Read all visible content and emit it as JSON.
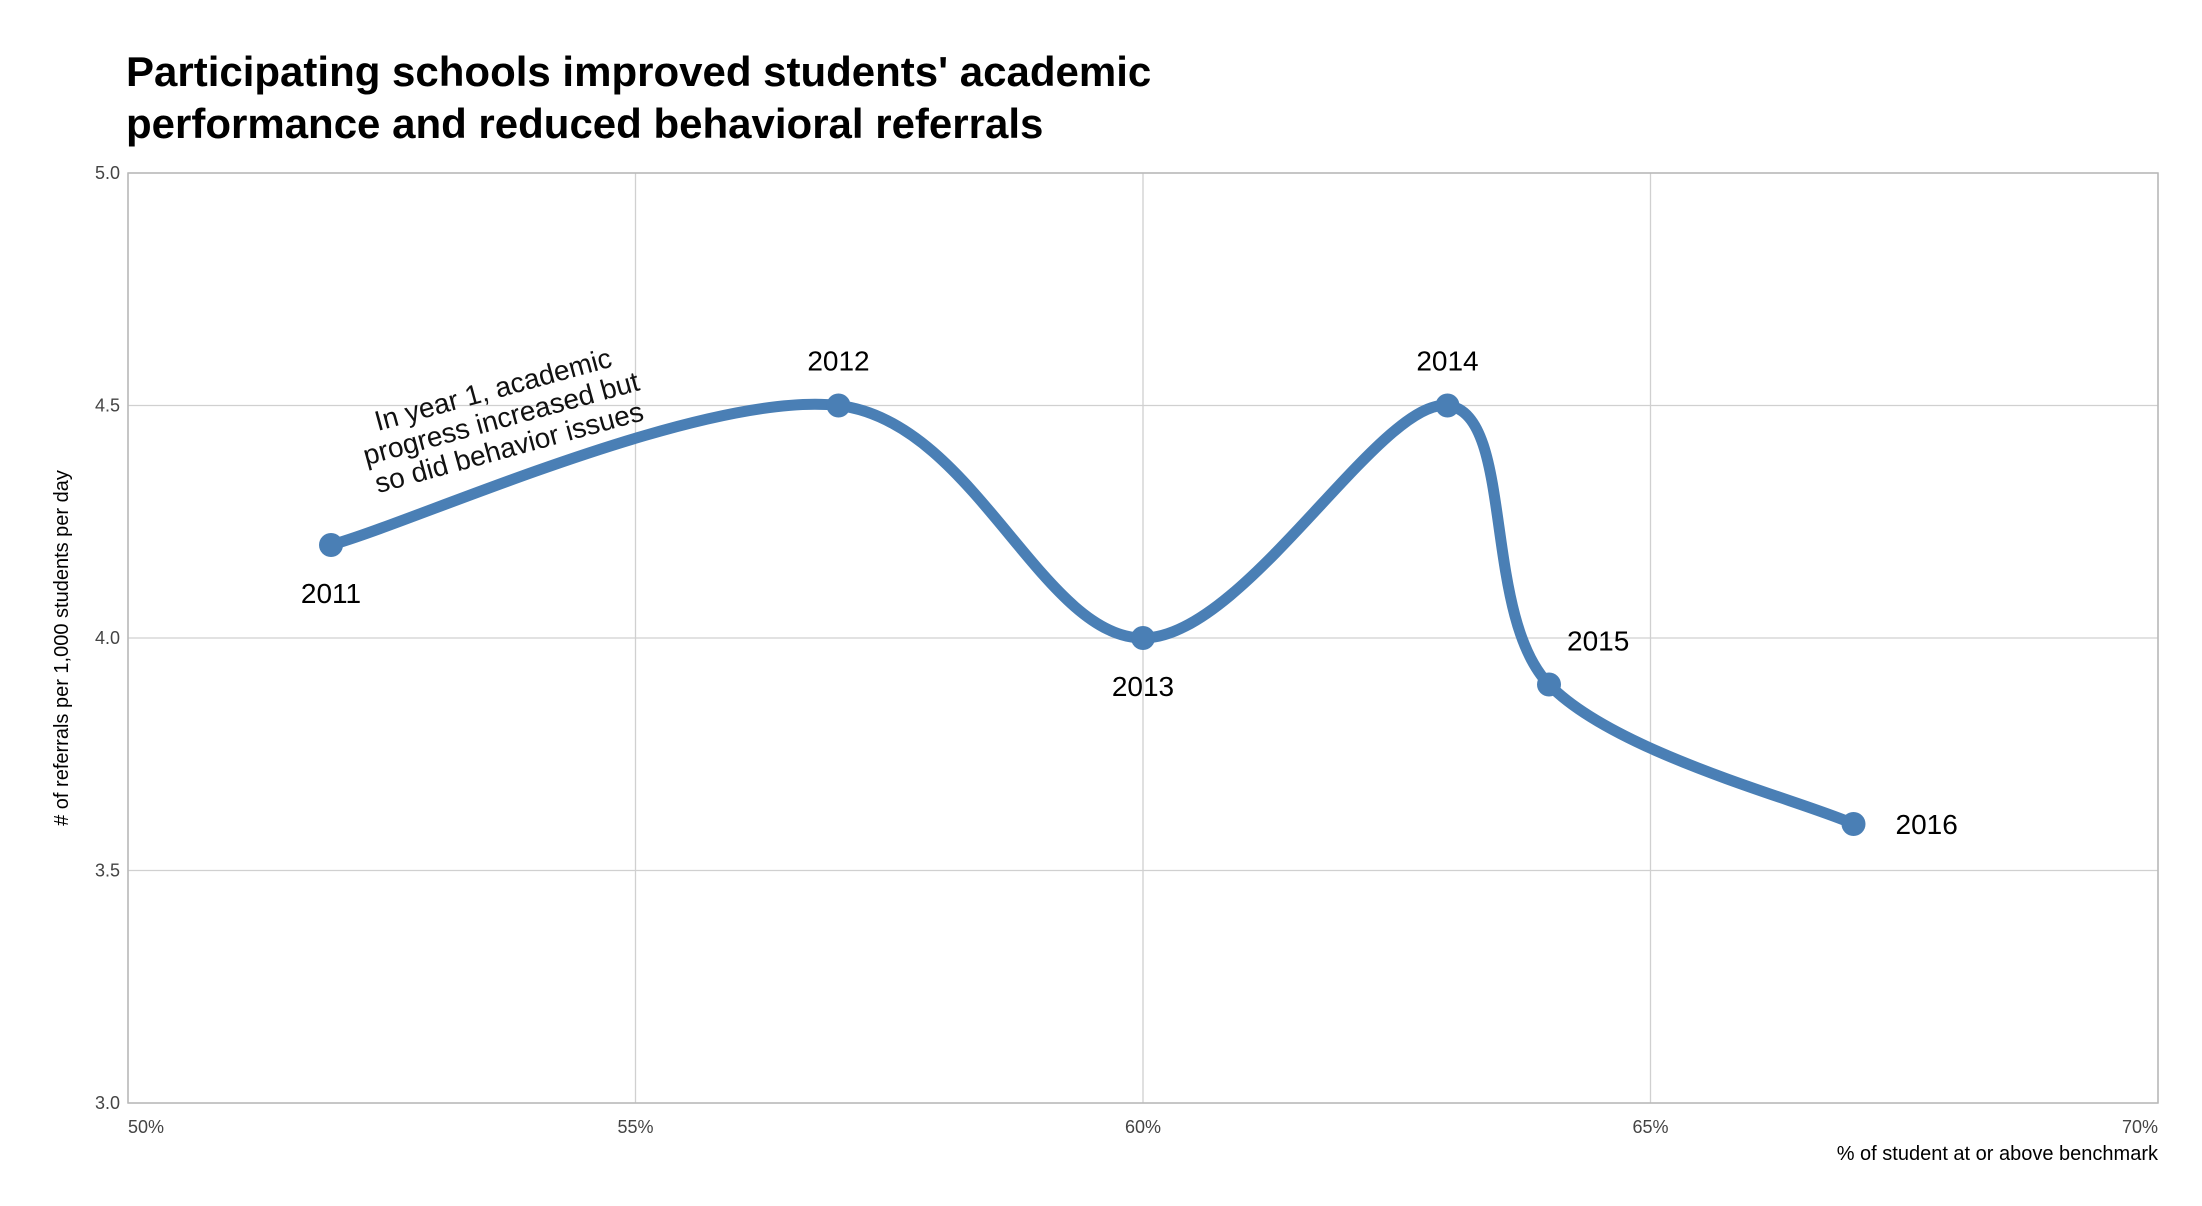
{
  "chart_data": {
    "type": "line",
    "title_lines": [
      "Participating schools improved students' academic",
      "performance and reduced behavioral referrals"
    ],
    "xlabel": "% of student at or above benchmark",
    "ylabel": "# of referrals per 1,000 students per day",
    "xlim": [
      50,
      70
    ],
    "ylim": [
      3.0,
      5.0
    ],
    "x_ticks": [
      50,
      55,
      60,
      65,
      70
    ],
    "x_tick_labels": [
      "50%",
      "55%",
      "60%",
      "65%",
      "70%"
    ],
    "y_ticks": [
      3.0,
      3.5,
      4.0,
      4.5,
      5.0
    ],
    "y_tick_labels": [
      "3.0",
      "3.5",
      "4.0",
      "4.5",
      "5.0"
    ],
    "grid": true,
    "line_color": "#4a7fb5",
    "points": [
      {
        "x": 52.0,
        "y": 4.2,
        "label": "2011"
      },
      {
        "x": 57.0,
        "y": 4.5,
        "label": "2012"
      },
      {
        "x": 60.0,
        "y": 4.0,
        "label": "2013"
      },
      {
        "x": 63.0,
        "y": 4.5,
        "label": "2014"
      },
      {
        "x": 64.0,
        "y": 3.9,
        "label": "2015"
      },
      {
        "x": 67.0,
        "y": 3.6,
        "label": "2016"
      }
    ],
    "annotation": {
      "lines": [
        "In year 1, academic",
        "progress increased but",
        "so did behavior issues"
      ]
    }
  }
}
